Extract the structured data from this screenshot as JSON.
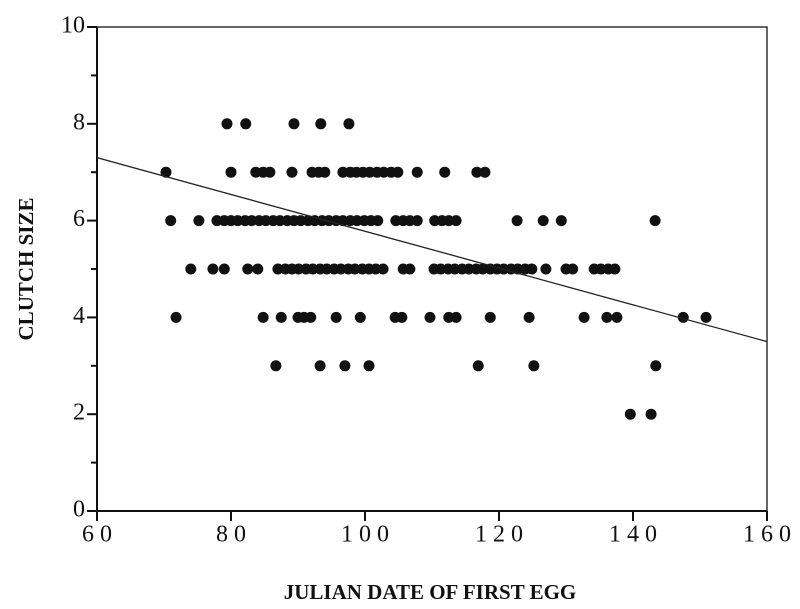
{
  "chart_data": {
    "type": "scatter",
    "xlabel": "JULIAN DATE OF FIRST EGG",
    "ylabel": "CLUTCH SIZE",
    "xlim": [
      60,
      160
    ],
    "ylim": [
      0,
      10
    ],
    "xticks": [
      60,
      80,
      100,
      120,
      140,
      160
    ],
    "yticks": [
      0,
      2,
      4,
      6,
      8,
      10
    ],
    "yminor": [
      1,
      3,
      5,
      7,
      9
    ],
    "color": "#111111",
    "x": [
      79.4,
      82.2,
      89.4,
      93.4,
      97.6,
      70.3,
      80,
      83.7,
      84.8,
      85.8,
      89.1,
      92.1,
      93.1,
      94,
      96.7,
      97.8,
      98.7,
      99.7,
      100.7,
      101.8,
      102.8,
      103.9,
      104.9,
      107.8,
      111.9,
      116.7,
      117.9,
      71,
      75.2,
      77.9,
      79,
      80,
      81,
      82.1,
      83.1,
      84.2,
      85.2,
      86.3,
      87.3,
      88.4,
      89.4,
      90.4,
      91.5,
      92.5,
      93.6,
      94.6,
      95.7,
      96.7,
      97.8,
      98.8,
      99.9,
      100.9,
      101.9,
      104.6,
      105.7,
      106.7,
      107.8,
      110.4,
      111.5,
      112.5,
      113.6,
      122.7,
      126.6,
      129.3,
      143.3,
      74,
      77.3,
      79,
      82.5,
      84,
      87,
      88.1,
      89.1,
      90.1,
      91.2,
      92.2,
      93.3,
      94.3,
      95.4,
      96.4,
      97.5,
      98.5,
      99.6,
      100.6,
      101.6,
      102.7,
      105.7,
      106.7,
      110.3,
      111.3,
      112.4,
      113.4,
      114.5,
      115.5,
      116.6,
      117.6,
      118.7,
      119.7,
      120.7,
      121.8,
      122.8,
      123.9,
      124.9,
      127,
      130,
      131,
      134.2,
      135.2,
      136.3,
      137.3,
      71.8,
      84.8,
      87.5,
      90,
      90.9,
      91.9,
      95.7,
      99.3,
      104.5,
      105.5,
      109.7,
      112.5,
      113.6,
      118.7,
      124.5,
      132.7,
      136.1,
      137.6,
      147.5,
      150.9,
      86.7,
      93.3,
      97,
      100.6,
      116.9,
      125.2,
      143.4,
      139.6,
      142.7
    ],
    "y": [
      8,
      8,
      8,
      8,
      8,
      7,
      7,
      7,
      7,
      7,
      7,
      7,
      7,
      7,
      7,
      7,
      7,
      7,
      7,
      7,
      7,
      7,
      7,
      7,
      7,
      7,
      7,
      6,
      6,
      6,
      6,
      6,
      6,
      6,
      6,
      6,
      6,
      6,
      6,
      6,
      6,
      6,
      6,
      6,
      6,
      6,
      6,
      6,
      6,
      6,
      6,
      6,
      6,
      6,
      6,
      6,
      6,
      6,
      6,
      6,
      6,
      6,
      6,
      6,
      6,
      5,
      5,
      5,
      5,
      5,
      5,
      5,
      5,
      5,
      5,
      5,
      5,
      5,
      5,
      5,
      5,
      5,
      5,
      5,
      5,
      5,
      5,
      5,
      5,
      5,
      5,
      5,
      5,
      5,
      5,
      5,
      5,
      5,
      5,
      5,
      5,
      5,
      5,
      5,
      5,
      5,
      5,
      5,
      5,
      5,
      4,
      4,
      4,
      4,
      4,
      4,
      4,
      4,
      4,
      4,
      4,
      4,
      4,
      4,
      4,
      4,
      4,
      4,
      4,
      4,
      3,
      3,
      3,
      3,
      3,
      3,
      3,
      2,
      2
    ],
    "trendline": {
      "x": [
        60,
        160
      ],
      "y": [
        7.3,
        3.5
      ]
    }
  }
}
